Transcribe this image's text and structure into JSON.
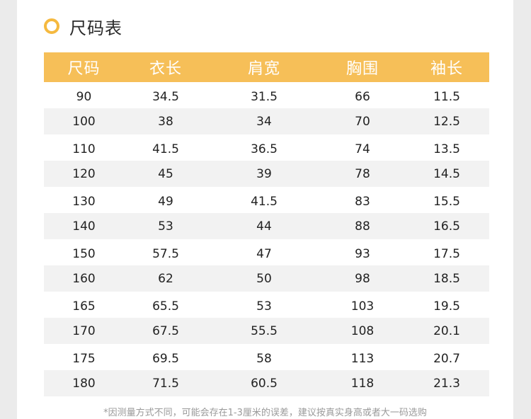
{
  "title": "尺码表",
  "colors": {
    "accent": "#f6bf58",
    "stripe": "#f2f2f2"
  },
  "table": {
    "headers": [
      "尺码",
      "衣长",
      "肩宽",
      "胸围",
      "袖长"
    ],
    "rows": [
      [
        "90",
        "34.5",
        "31.5",
        "66",
        "11.5"
      ],
      [
        "100",
        "38",
        "34",
        "70",
        "12.5"
      ],
      [
        "110",
        "41.5",
        "36.5",
        "74",
        "13.5"
      ],
      [
        "120",
        "45",
        "39",
        "78",
        "14.5"
      ],
      [
        "130",
        "49",
        "41.5",
        "83",
        "15.5"
      ],
      [
        "140",
        "53",
        "44",
        "88",
        "16.5"
      ],
      [
        "150",
        "57.5",
        "47",
        "93",
        "17.5"
      ],
      [
        "160",
        "62",
        "50",
        "98",
        "18.5"
      ],
      [
        "165",
        "65.5",
        "53",
        "103",
        "19.5"
      ],
      [
        "170",
        "67.5",
        "55.5",
        "108",
        "20.1"
      ],
      [
        "175",
        "69.5",
        "58",
        "113",
        "20.7"
      ],
      [
        "180",
        "71.5",
        "60.5",
        "118",
        "21.3"
      ]
    ]
  },
  "footnote": "*因测量方式不同，可能会存在1-3厘米的误差，建议按真实身高或者大一码选购"
}
